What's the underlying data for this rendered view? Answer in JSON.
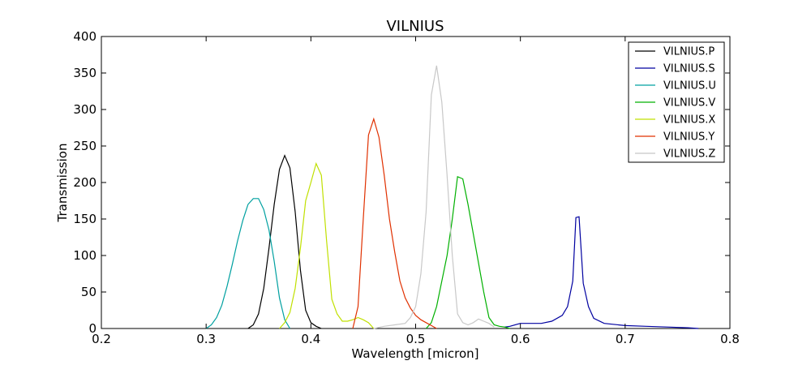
{
  "chart_data": {
    "type": "line",
    "title": "VILNIUS",
    "xlabel": "Wavelength [micron]",
    "ylabel": "Transmission",
    "xlim": [
      0.2,
      0.8
    ],
    "ylim": [
      0,
      400
    ],
    "xticks": [
      "0.2",
      "0.3",
      "0.4",
      "0.5",
      "0.6",
      "0.7",
      "0.8"
    ],
    "yticks": [
      "0",
      "50",
      "100",
      "150",
      "200",
      "250",
      "300",
      "350",
      "400"
    ],
    "grid": false,
    "legend_position": "top-right",
    "series": [
      {
        "name": "VILNIUS.P",
        "color": "#000000",
        "x": [
          0.34,
          0.345,
          0.35,
          0.355,
          0.36,
          0.365,
          0.37,
          0.375,
          0.38,
          0.385,
          0.39,
          0.395,
          0.4,
          0.405,
          0.41
        ],
        "y": [
          0,
          5,
          20,
          55,
          110,
          170,
          218,
          237,
          220,
          160,
          80,
          25,
          8,
          3,
          0
        ]
      },
      {
        "name": "VILNIUS.S",
        "color": "#0000a0",
        "x": [
          0.585,
          0.59,
          0.6,
          0.61,
          0.62,
          0.63,
          0.64,
          0.645,
          0.65,
          0.653,
          0.656,
          0.66,
          0.665,
          0.67,
          0.68,
          0.7,
          0.72,
          0.74,
          0.76,
          0.77
        ],
        "y": [
          2,
          3,
          7,
          7,
          7,
          10,
          18,
          30,
          65,
          152,
          153,
          62,
          30,
          14,
          7,
          4,
          3,
          2,
          1,
          0
        ]
      },
      {
        "name": "VILNIUS.U",
        "color": "#00a0a0",
        "x": [
          0.3,
          0.305,
          0.31,
          0.315,
          0.32,
          0.325,
          0.33,
          0.335,
          0.34,
          0.345,
          0.35,
          0.355,
          0.36,
          0.365,
          0.37,
          0.375,
          0.38
        ],
        "y": [
          0,
          5,
          15,
          32,
          58,
          88,
          120,
          148,
          170,
          178,
          178,
          163,
          135,
          92,
          42,
          12,
          0
        ]
      },
      {
        "name": "VILNIUS.V",
        "color": "#00b000",
        "x": [
          0.51,
          0.515,
          0.52,
          0.525,
          0.53,
          0.535,
          0.54,
          0.545,
          0.55,
          0.555,
          0.56,
          0.565,
          0.57,
          0.575,
          0.58,
          0.585,
          0.59
        ],
        "y": [
          0,
          8,
          30,
          65,
          100,
          150,
          208,
          205,
          170,
          130,
          90,
          50,
          15,
          5,
          3,
          2,
          0
        ]
      },
      {
        "name": "VILNIUS.X",
        "color": "#c0e000",
        "x": [
          0.37,
          0.375,
          0.38,
          0.385,
          0.39,
          0.395,
          0.4,
          0.405,
          0.41,
          0.415,
          0.42,
          0.425,
          0.43,
          0.435,
          0.44,
          0.445,
          0.45,
          0.455,
          0.46
        ],
        "y": [
          0,
          8,
          22,
          55,
          110,
          175,
          200,
          226,
          210,
          120,
          40,
          20,
          10,
          10,
          12,
          15,
          12,
          8,
          0
        ]
      },
      {
        "name": "VILNIUS.Y",
        "color": "#e03000",
        "x": [
          0.44,
          0.445,
          0.45,
          0.455,
          0.46,
          0.465,
          0.47,
          0.475,
          0.48,
          0.485,
          0.49,
          0.495,
          0.5,
          0.505,
          0.51,
          0.515,
          0.52
        ],
        "y": [
          0,
          30,
          150,
          265,
          287,
          262,
          210,
          150,
          105,
          65,
          42,
          28,
          18,
          12,
          8,
          4,
          0
        ]
      },
      {
        "name": "VILNIUS.Z",
        "color": "#c8c8c8",
        "x": [
          0.46,
          0.47,
          0.48,
          0.49,
          0.495,
          0.5,
          0.505,
          0.51,
          0.515,
          0.52,
          0.525,
          0.53,
          0.535,
          0.54,
          0.545,
          0.55,
          0.555,
          0.56,
          0.565,
          0.57,
          0.575
        ],
        "y": [
          0,
          3,
          5,
          7,
          15,
          30,
          75,
          160,
          320,
          360,
          310,
          210,
          100,
          20,
          8,
          5,
          8,
          13,
          10,
          7,
          2
        ]
      }
    ]
  }
}
